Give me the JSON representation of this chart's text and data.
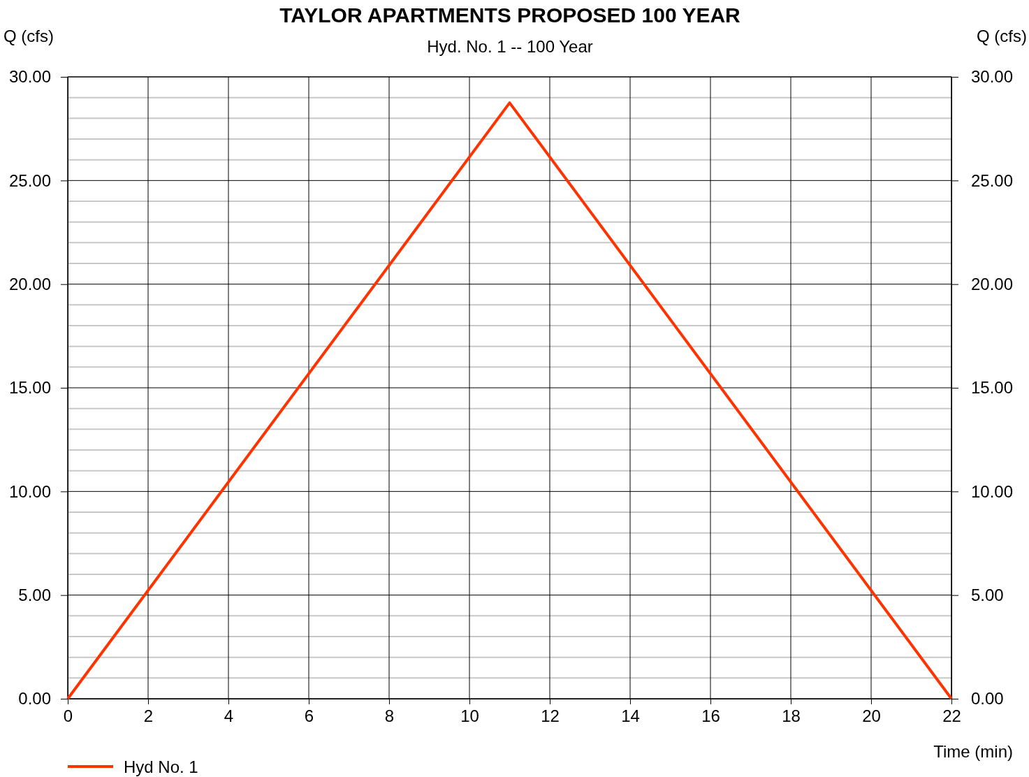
{
  "chart_data": {
    "type": "line",
    "title": "TAYLOR APARTMENTS PROPOSED 100 YEAR",
    "subtitle": "Hyd. No. 1 -- 100 Year",
    "xlabel": "Time (min)",
    "ylabel": "Q (cfs)",
    "y2label": "Q (cfs)",
    "series": [
      {
        "name": "Hyd No. 1",
        "color": "#ff3300",
        "x": [
          0,
          11,
          22
        ],
        "values": [
          0,
          28.75,
          0
        ]
      }
    ],
    "xlim": [
      0,
      22
    ],
    "xticks": [
      0,
      2,
      4,
      6,
      8,
      10,
      12,
      14,
      16,
      18,
      20,
      22
    ],
    "ylim": [
      0,
      30
    ],
    "yticks": [
      {
        "value": 0,
        "label": "0.00"
      },
      {
        "value": 1,
        "label": null
      },
      {
        "value": 2,
        "label": null
      },
      {
        "value": 3,
        "label": null
      },
      {
        "value": 4,
        "label": null
      },
      {
        "value": 5,
        "label": "5.00"
      },
      {
        "value": 6,
        "label": null
      },
      {
        "value": 7,
        "label": null
      },
      {
        "value": 8,
        "label": null
      },
      {
        "value": 9,
        "label": null
      },
      {
        "value": 10,
        "label": "10.00"
      },
      {
        "value": 11,
        "label": null
      },
      {
        "value": 12,
        "label": null
      },
      {
        "value": 13,
        "label": null
      },
      {
        "value": 14,
        "label": null
      },
      {
        "value": 15,
        "label": "15.00"
      },
      {
        "value": 16,
        "label": null
      },
      {
        "value": 17,
        "label": null
      },
      {
        "value": 18,
        "label": null
      },
      {
        "value": 19,
        "label": null
      },
      {
        "value": 20,
        "label": "20.00"
      },
      {
        "value": 21,
        "label": null
      },
      {
        "value": 22,
        "label": null
      },
      {
        "value": 23,
        "label": null
      },
      {
        "value": 24,
        "label": null
      },
      {
        "value": 25,
        "label": "25.00"
      },
      {
        "value": 26,
        "label": null
      },
      {
        "value": 27,
        "label": null
      },
      {
        "value": 28,
        "label": null
      },
      {
        "value": 29,
        "label": null
      },
      {
        "value": 30,
        "label": "30.00"
      }
    ],
    "y2lim": [
      0,
      30
    ],
    "y2ticks": [
      {
        "value": 0,
        "label": "0.00"
      },
      {
        "value": 5,
        "label": "5.00"
      },
      {
        "value": 10,
        "label": "10.00"
      },
      {
        "value": 15,
        "label": "15.00"
      },
      {
        "value": 20,
        "label": "20.00"
      },
      {
        "value": 25,
        "label": "25.00"
      },
      {
        "value": 30,
        "label": "30.00"
      }
    ],
    "grid": true,
    "legend": "bottom left",
    "marker": "none",
    "line_style": "solid"
  }
}
